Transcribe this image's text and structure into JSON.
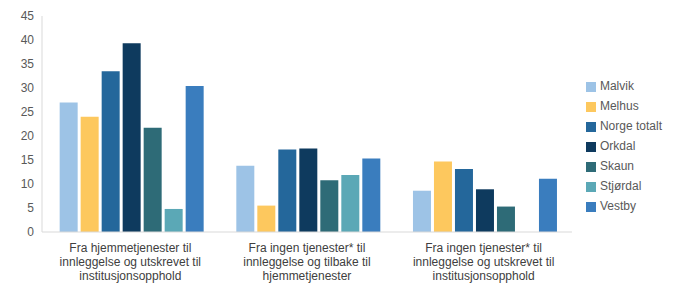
{
  "chart_data": {
    "type": "bar",
    "categories": [
      "Fra hjemmetjenester til innleggelse og utskrevet til institusjonsopphold",
      "Fra ingen tjenester* til innleggelse og tilbake til hjemmetjenester",
      "Fra ingen tjenester* til innleggelse og utskrevet til institusjonsopphold"
    ],
    "series": [
      {
        "name": "Malvik",
        "color": "#9dc3e6",
        "values": [
          27,
          13.8,
          8.6
        ]
      },
      {
        "name": "Melhus",
        "color": "#fdc85e",
        "values": [
          24,
          5.5,
          14.7
        ]
      },
      {
        "name": "Norge totalt",
        "color": "#24679b",
        "values": [
          33.5,
          17.2,
          13.1
        ]
      },
      {
        "name": "Orkdal",
        "color": "#0e3a5e",
        "values": [
          39.3,
          17.4,
          8.9
        ]
      },
      {
        "name": "Skaun",
        "color": "#2e6b77",
        "values": [
          21.7,
          10.8,
          5.3
        ]
      },
      {
        "name": "Stjørdal",
        "color": "#5ba8b6",
        "values": [
          4.8,
          11.9,
          null
        ]
      },
      {
        "name": "Vestby",
        "color": "#3a7dbe",
        "values": [
          30.4,
          15.3,
          11.1
        ]
      }
    ],
    "ylim": [
      0,
      45
    ],
    "yticks": [
      0,
      5,
      10,
      15,
      20,
      25,
      30,
      35,
      40,
      45
    ],
    "grid": false,
    "legend": "right"
  }
}
